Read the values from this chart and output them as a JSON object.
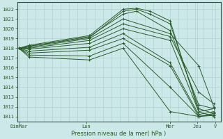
{
  "xlabel": "Pression niveau de la mer( hPa )",
  "bg_color": "#cce8e8",
  "grid_color": "#aacccc",
  "line_color": "#2a5c2a",
  "ylim": [
    1010.5,
    1022.7
  ],
  "yticks": [
    1011,
    1012,
    1013,
    1014,
    1015,
    1016,
    1017,
    1018,
    1019,
    1020,
    1021,
    1022
  ],
  "xtick_labels": [
    "DimMar",
    "Lun",
    "Mer",
    "Jeu",
    "V"
  ],
  "xtick_pos": [
    0.0,
    2.0,
    4.5,
    5.3,
    5.85
  ],
  "xlim": [
    -0.05,
    6.0
  ],
  "series": [
    {
      "x": [
        0.0,
        0.3,
        2.1,
        3.1,
        3.5,
        3.9,
        4.5,
        5.35,
        5.8
      ],
      "y": [
        1018.0,
        1018.3,
        1019.3,
        1022.0,
        1022.1,
        1021.8,
        1020.8,
        1011.5,
        1011.0
      ]
    },
    {
      "x": [
        0.0,
        0.3,
        2.1,
        3.1,
        3.5,
        3.9,
        4.5,
        5.35,
        5.8
      ],
      "y": [
        1018.0,
        1018.2,
        1019.1,
        1021.8,
        1022.0,
        1021.5,
        1020.5,
        1011.8,
        1011.3
      ]
    },
    {
      "x": [
        0.0,
        0.3,
        2.1,
        3.1,
        3.5,
        4.5,
        5.35,
        5.8
      ],
      "y": [
        1018.0,
        1018.2,
        1019.2,
        1021.5,
        1021.8,
        1019.8,
        1012.2,
        1011.8
      ]
    },
    {
      "x": [
        0.0,
        0.3,
        2.1,
        3.1,
        4.5,
        5.35,
        5.8
      ],
      "y": [
        1018.0,
        1018.1,
        1019.0,
        1021.0,
        1019.5,
        1016.2,
        1012.0
      ]
    },
    {
      "x": [
        0.0,
        0.3,
        2.1,
        3.1,
        4.5,
        5.35,
        5.8
      ],
      "y": [
        1018.0,
        1018.0,
        1018.8,
        1020.5,
        1019.2,
        1013.5,
        1012.3
      ]
    },
    {
      "x": [
        0.0,
        0.3,
        2.1,
        3.1,
        4.5,
        5.35,
        5.8
      ],
      "y": [
        1018.0,
        1017.9,
        1018.5,
        1020.0,
        1018.8,
        1011.5,
        1011.8
      ]
    },
    {
      "x": [
        0.0,
        0.3,
        2.1,
        3.1,
        4.5,
        5.35,
        5.8
      ],
      "y": [
        1018.0,
        1017.7,
        1018.1,
        1019.5,
        1016.5,
        1011.2,
        1011.5
      ]
    },
    {
      "x": [
        0.0,
        0.3,
        2.1,
        3.1,
        4.5,
        5.35,
        5.8
      ],
      "y": [
        1018.0,
        1017.5,
        1017.8,
        1019.0,
        1016.2,
        1011.0,
        1011.3
      ]
    },
    {
      "x": [
        0.0,
        0.3,
        2.1,
        3.1,
        4.5,
        5.35,
        5.8
      ],
      "y": [
        1018.0,
        1017.3,
        1017.2,
        1018.5,
        1014.0,
        1011.0,
        1011.2
      ]
    },
    {
      "x": [
        0.0,
        0.3,
        2.1,
        3.1,
        4.5,
        5.35,
        5.8
      ],
      "y": [
        1018.0,
        1017.1,
        1016.8,
        1018.0,
        1011.5,
        1011.0,
        1011.1
      ]
    }
  ]
}
